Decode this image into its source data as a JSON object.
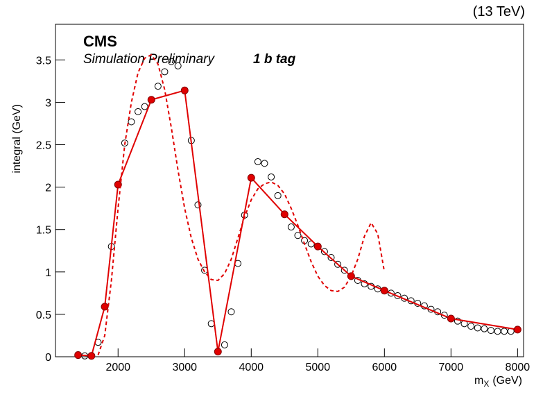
{
  "chart_data": {
    "type": "line",
    "title": "(13 TeV)",
    "experiment": "CMS",
    "subtitle": "Simulation Preliminary",
    "annotation": "1 b tag",
    "y_label": "integral (GeV)",
    "x_label_main": "m",
    "x_label_sub": "X",
    "x_label_unit": "(GeV)",
    "xlim": [
      1060,
      8090
    ],
    "ylim": [
      0,
      3.92
    ],
    "xticks": [
      2000,
      3000,
      4000,
      5000,
      6000,
      7000,
      8000
    ],
    "yticks": [
      0,
      0.5,
      1,
      1.5,
      2,
      2.5,
      3,
      3.5
    ],
    "grid": false,
    "series": [
      {
        "color": "#000000",
        "marker": "open-circle",
        "line": "none",
        "x": [
          1500,
          1700,
          1900,
          2100,
          2200,
          2300,
          2400,
          2600,
          2700,
          2800,
          2900,
          3100,
          3200,
          3300,
          3400,
          3600,
          3700,
          3800,
          3900,
          4100,
          4200,
          4300,
          4400,
          4600,
          4700,
          4800,
          4900,
          5100,
          5200,
          5300,
          5400,
          5600,
          5700,
          5800,
          5900,
          6100,
          6200,
          6300,
          6400,
          6500,
          6600,
          6700,
          6800,
          6900,
          7100,
          7200,
          7300,
          7400,
          7500,
          7600,
          7700,
          7800,
          7900
        ],
        "values": [
          0.01,
          0.17,
          1.3,
          2.52,
          2.77,
          2.89,
          2.95,
          3.19,
          3.36,
          3.48,
          3.43,
          2.55,
          1.79,
          1.02,
          0.39,
          0.14,
          0.53,
          1.1,
          1.67,
          2.3,
          2.28,
          2.12,
          1.9,
          1.53,
          1.43,
          1.37,
          1.33,
          1.24,
          1.17,
          1.09,
          1.02,
          0.9,
          0.86,
          0.83,
          0.8,
          0.75,
          0.72,
          0.69,
          0.66,
          0.63,
          0.6,
          0.56,
          0.53,
          0.49,
          0.42,
          0.39,
          0.36,
          0.34,
          0.33,
          0.31,
          0.3,
          0.3,
          0.3
        ]
      },
      {
        "color": "#e00000",
        "marker": "filled-circle",
        "line": "solid",
        "x": [
          1400,
          1600,
          1800,
          2000,
          2500,
          3000,
          3500,
          4000,
          4500,
          5000,
          5500,
          6000,
          7000,
          8000
        ],
        "values": [
          0.02,
          0.01,
          0.59,
          2.03,
          3.03,
          3.14,
          0.06,
          2.11,
          1.68,
          1.3,
          0.95,
          0.78,
          0.45,
          0.32
        ]
      },
      {
        "color": "#e00000",
        "marker": "none",
        "line": "dashed",
        "x": [
          1700,
          1800,
          1900,
          2000,
          2100,
          2200,
          2300,
          2400,
          2500,
          2600,
          2700,
          2800,
          2900,
          3000,
          3100,
          3200,
          3300,
          3400,
          3500,
          3600,
          3700,
          3800,
          3900,
          4000,
          4100,
          4200,
          4300,
          4400,
          4500,
          4600,
          4700,
          4800,
          4900,
          5000,
          5100,
          5200,
          5300,
          5400,
          5500,
          5600,
          5700,
          5800,
          5900,
          6000
        ],
        "values": [
          0.02,
          0.25,
          0.9,
          1.75,
          2.5,
          3.0,
          3.35,
          3.52,
          3.56,
          3.45,
          3.15,
          2.7,
          2.2,
          1.75,
          1.4,
          1.15,
          1.0,
          0.91,
          0.9,
          0.98,
          1.15,
          1.4,
          1.65,
          1.85,
          1.98,
          2.04,
          2.06,
          2.02,
          1.92,
          1.75,
          1.55,
          1.33,
          1.12,
          0.95,
          0.84,
          0.78,
          0.77,
          0.82,
          0.95,
          1.15,
          1.42,
          1.58,
          1.45,
          1.0
        ]
      }
    ]
  }
}
